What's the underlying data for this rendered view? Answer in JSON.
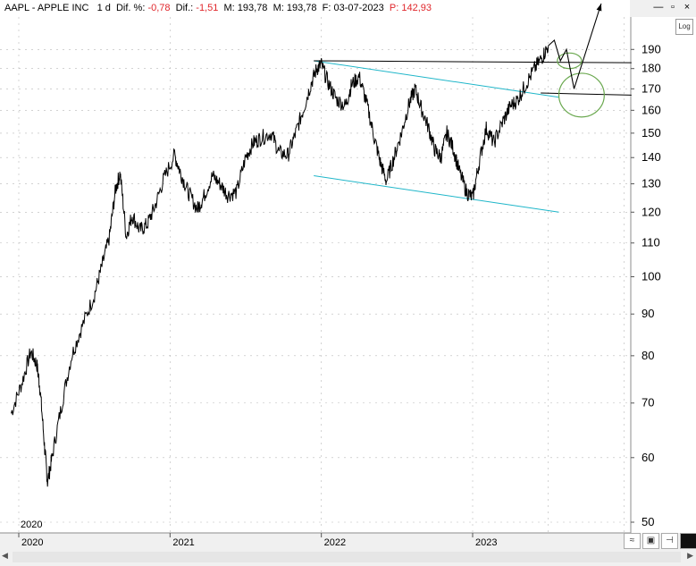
{
  "header": {
    "symbol": "AAPL",
    "name": "APPLE INC",
    "interval": "1 d",
    "dif_pct_label": "Dif. %:",
    "dif_pct": "-0,78",
    "dif_label": "Dif.:",
    "dif": "-1,51",
    "m_label": "M:",
    "m": "193,78",
    "m2": "193,78",
    "f_label": "F:",
    "f": "03-07-2023",
    "p_label": "P:",
    "p": "142,93"
  },
  "controls": {
    "minimize": "—",
    "restore": "▫",
    "close": "×",
    "log": "Log"
  },
  "chart_data": {
    "type": "line",
    "title": "",
    "xlabel": "",
    "ylabel": "",
    "yscale": "log",
    "y_ticks": [
      50,
      60,
      70,
      80,
      90,
      100,
      110,
      120,
      130,
      140,
      150,
      160,
      170,
      180,
      190
    ],
    "x_ticks": [
      "2020",
      "2021",
      "2022",
      "2023"
    ],
    "corner_year_label": "2020",
    "series": [
      {
        "values": [
          [
            2019.95,
            68
          ],
          [
            2020.02,
            74
          ],
          [
            2020.08,
            81
          ],
          [
            2020.12,
            78
          ],
          [
            2020.14,
            73
          ],
          [
            2020.17,
            62
          ],
          [
            2020.19,
            56
          ],
          [
            2020.22,
            60
          ],
          [
            2020.28,
            69
          ],
          [
            2020.35,
            80
          ],
          [
            2020.42,
            87
          ],
          [
            2020.5,
            95
          ],
          [
            2020.55,
            103
          ],
          [
            2020.6,
            112
          ],
          [
            2020.64,
            128
          ],
          [
            2020.67,
            134
          ],
          [
            2020.71,
            112
          ],
          [
            2020.75,
            119
          ],
          [
            2020.8,
            114
          ],
          [
            2020.85,
            116
          ],
          [
            2020.9,
            122
          ],
          [
            2020.96,
            132
          ],
          [
            2021.03,
            141
          ],
          [
            2021.07,
            134
          ],
          [
            2021.12,
            127
          ],
          [
            2021.18,
            121
          ],
          [
            2021.22,
            125
          ],
          [
            2021.28,
            133
          ],
          [
            2021.33,
            130
          ],
          [
            2021.38,
            126
          ],
          [
            2021.44,
            127
          ],
          [
            2021.5,
            140
          ],
          [
            2021.55,
            146
          ],
          [
            2021.6,
            148
          ],
          [
            2021.67,
            150
          ],
          [
            2021.72,
            142
          ],
          [
            2021.78,
            141
          ],
          [
            2021.83,
            150
          ],
          [
            2021.88,
            160
          ],
          [
            2021.93,
            172
          ],
          [
            2021.97,
            180
          ],
          [
            2022.0,
            182
          ],
          [
            2022.05,
            172
          ],
          [
            2022.1,
            165
          ],
          [
            2022.16,
            162
          ],
          [
            2022.2,
            172
          ],
          [
            2022.25,
            176
          ],
          [
            2022.3,
            163
          ],
          [
            2022.35,
            148
          ],
          [
            2022.39,
            138
          ],
          [
            2022.43,
            131
          ],
          [
            2022.48,
            140
          ],
          [
            2022.53,
            150
          ],
          [
            2022.58,
            163
          ],
          [
            2022.62,
            170
          ],
          [
            2022.66,
            161
          ],
          [
            2022.71,
            152
          ],
          [
            2022.75,
            143
          ],
          [
            2022.79,
            140
          ],
          [
            2022.83,
            150
          ],
          [
            2022.87,
            144
          ],
          [
            2022.91,
            135
          ],
          [
            2022.96,
            127
          ],
          [
            2023.0,
            125
          ],
          [
            2023.04,
            137
          ],
          [
            2023.09,
            152
          ],
          [
            2023.14,
            146
          ],
          [
            2023.2,
            155
          ],
          [
            2023.25,
            162
          ],
          [
            2023.3,
            165
          ],
          [
            2023.35,
            172
          ],
          [
            2023.41,
            180
          ],
          [
            2023.46,
            186
          ],
          [
            2023.5,
            192
          ]
        ]
      }
    ],
    "projection": [
      [
        2023.5,
        192
      ],
      [
        2023.54,
        195
      ],
      [
        2023.58,
        184
      ],
      [
        2023.62,
        190
      ],
      [
        2023.67,
        170
      ],
      [
        2023.78,
        197
      ]
    ],
    "trendlines": [
      {
        "color": "#1fb6c9",
        "points": [
          [
            2021.95,
            184
          ],
          [
            2023.57,
            166
          ]
        ]
      },
      {
        "color": "#1fb6c9",
        "points": [
          [
            2021.95,
            133
          ],
          [
            2023.57,
            120
          ]
        ]
      },
      {
        "color": "#000000",
        "points": [
          [
            2021.95,
            184
          ],
          [
            2024.05,
            183
          ]
        ]
      },
      {
        "color": "#000000",
        "points": [
          [
            2023.45,
            168
          ],
          [
            2024.05,
            167
          ]
        ]
      }
    ],
    "ellipses": [
      {
        "color": "#6aa84f",
        "cx": 2023.64,
        "cy": 184,
        "rx_years": 0.08,
        "ry_value": 4
      },
      {
        "color": "#6aa84f",
        "cx": 2023.72,
        "cy": 167,
        "rx_years": 0.15,
        "ry_value": 10
      }
    ],
    "colors": {
      "price": "#000000",
      "grid": "#b8b8b8",
      "channel": "#1fb6c9",
      "ellipse": "#6aa84f"
    }
  }
}
